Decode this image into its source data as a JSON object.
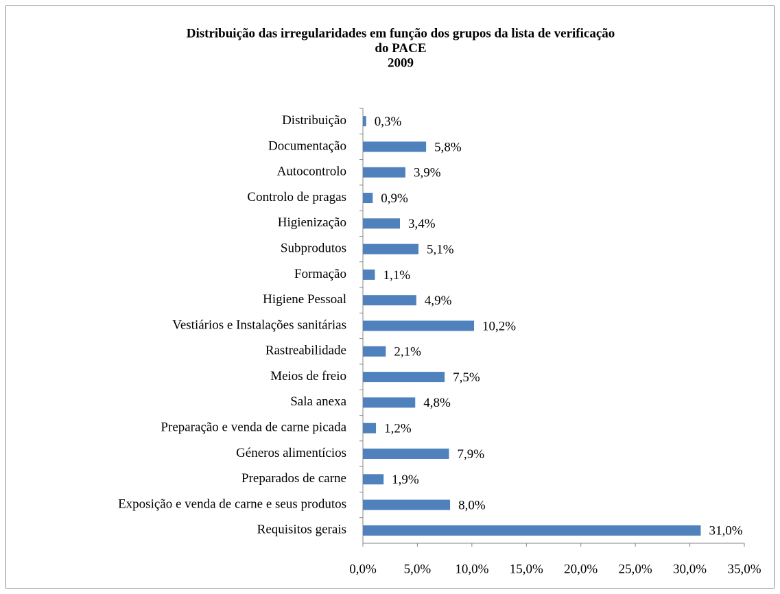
{
  "chart_data": {
    "type": "bar",
    "orientation": "horizontal",
    "title": [
      "Distribuição das irregularidades em função dos grupos da lista de verificação",
      "do PACE",
      "2009"
    ],
    "categories": [
      "Distribuição",
      "Documentação",
      "Autocontrolo",
      "Controlo de pragas",
      "Higienização",
      "Subprodutos",
      "Formação",
      "Higiene Pessoal",
      "Vestiários e Instalações sanitárias",
      "Rastreabilidade",
      "Meios de freio",
      "Sala anexa",
      "Preparação e venda de carne picada",
      "Géneros alimentícios",
      "Preparados de carne",
      "Exposição e venda de carne e seus produtos",
      "Requisitos gerais"
    ],
    "values": [
      0.3,
      5.8,
      3.9,
      0.9,
      3.4,
      5.1,
      1.1,
      4.9,
      10.2,
      2.1,
      7.5,
      4.8,
      1.2,
      7.9,
      1.9,
      8.0,
      31.0
    ],
    "value_labels": [
      "0,3%",
      "5,8%",
      "3,9%",
      "0,9%",
      "3,4%",
      "5,1%",
      "1,1%",
      "4,9%",
      "10,2%",
      "2,1%",
      "7,5%",
      "4,8%",
      "1,2%",
      "7,9%",
      "1,9%",
      "8,0%",
      "31,0%"
    ],
    "color": "#4f81bd",
    "xlim": [
      0,
      35
    ],
    "xticks": [
      {
        "value": 0,
        "label": "0,0%"
      },
      {
        "value": 5,
        "label": "5,0%"
      },
      {
        "value": 10,
        "label": "10,0%"
      },
      {
        "value": 15,
        "label": "15,0%"
      },
      {
        "value": 20,
        "label": "20,0%"
      },
      {
        "value": 25,
        "label": "25,0%"
      },
      {
        "value": 30,
        "label": "30,0%"
      },
      {
        "value": 35,
        "label": "35,0%"
      }
    ],
    "grid": false
  }
}
